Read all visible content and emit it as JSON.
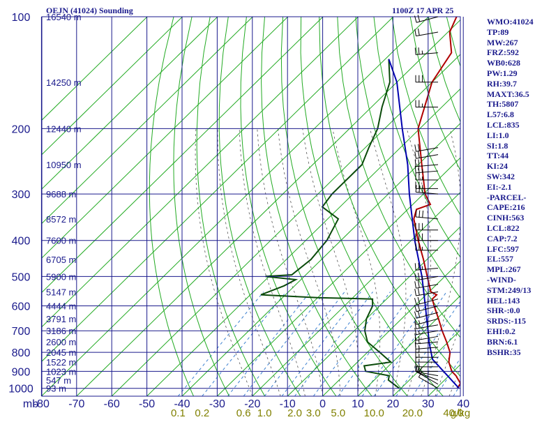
{
  "header": {
    "station_title": "OEJN (41024) Sounding",
    "time_stamp": "1100Z 17 APR 25"
  },
  "side_panel": [
    "WMO:41024",
    "TP:89",
    "MW:267",
    "FRZ:592",
    "WB0:628",
    "PW:1.29",
    "RH:39.7",
    "MAXT:36.5",
    "TH:5807",
    "L57:6.8",
    "LCL:835",
    "LI:1.0",
    "SI:1.8",
    "TT:44",
    "KI:24",
    "SW:342",
    "EI:-2.1",
    "-PARCEL-",
    "CAPE:216",
    "CINH:563",
    "LCL:822",
    "CAP:7.2",
    "LFC:597",
    "EL:557",
    "MPL:267",
    "-WIND-",
    "STM:249/13",
    "HEL:143",
    "SHR-:0.0",
    "SRDS:-115",
    "EHI:0.2",
    "BRN:6.1",
    "BSHR:35"
  ],
  "colors": {
    "background": "#ffffff",
    "grid": "#1a1a8c",
    "isotherm_dry_adiabat": "#22aa22",
    "moist_adiabat": "#555555",
    "mixing_ratio": "#3a7fd0",
    "temperature": "#b00000",
    "dewpoint": "#0a4a0a",
    "parcel": "#0000b0",
    "wind_barb": "#000000",
    "axis_text": "#1a1a8c",
    "mixing_text": "#808000",
    "height_text": "#1a1a8c"
  },
  "chart_data": {
    "type": "line",
    "chart_kind": "skew-T log-p sounding",
    "x_axis_unit_label": "mb",
    "x_tick_labels": [
      "-80",
      "-70",
      "-60",
      "-50",
      "-40",
      "-30",
      "-20",
      "-10",
      "0",
      "10",
      "20",
      "30",
      "40"
    ],
    "x_ticks": [
      -80,
      -70,
      -60,
      -50,
      -40,
      -30,
      -20,
      -10,
      0,
      10,
      20,
      30,
      40
    ],
    "xlim": [
      -80,
      40
    ],
    "y_scale": "log",
    "y_ticks": [
      100,
      200,
      300,
      400,
      500,
      600,
      700,
      800,
      900,
      1000
    ],
    "y_tick_labels": [
      "100",
      "200",
      "300",
      "400",
      "500",
      "600",
      "700",
      "800",
      "900",
      "1000"
    ],
    "ylim": [
      1050,
      100
    ],
    "mixing_ratio_labels": [
      "0.1",
      "0.2",
      "0.6",
      "1.0",
      "2.0",
      "3.0",
      "5.0",
      "10.0",
      "20.0",
      "40.0"
    ],
    "mixing_ratio_unit": "g/kg",
    "mixing_ratio_values": [
      0.1,
      0.2,
      0.6,
      1.0,
      2.0,
      3.0,
      5.0,
      10.0,
      20.0,
      40.0
    ],
    "height_labels": [
      {
        "p": 100,
        "label": "16540 m"
      },
      {
        "p": 150,
        "label": "14250 m"
      },
      {
        "p": 200,
        "label": "12440 m"
      },
      {
        "p": 250,
        "label": "10950 m"
      },
      {
        "p": 300,
        "label": "9688 m"
      },
      {
        "p": 350,
        "label": "8572 m"
      },
      {
        "p": 400,
        "label": "7600 m"
      },
      {
        "p": 450,
        "label": "6705 m"
      },
      {
        "p": 500,
        "label": "5900 m"
      },
      {
        "p": 550,
        "label": "5147 m"
      },
      {
        "p": 600,
        "label": "4444 m"
      },
      {
        "p": 650,
        "label": "3791 m"
      },
      {
        "p": 700,
        "label": "3186 m"
      },
      {
        "p": 750,
        "label": "2600 m"
      },
      {
        "p": 800,
        "label": "2045 m"
      },
      {
        "p": 850,
        "label": "1522 m"
      },
      {
        "p": 900,
        "label": "1023 m"
      },
      {
        "p": 950,
        "label": "547 m"
      },
      {
        "p": 1000,
        "label": "93 m"
      }
    ],
    "series": [
      {
        "role": "temperature",
        "points": [
          {
            "p": 1000,
            "t": 36.0
          },
          {
            "p": 970,
            "t": 35.5
          },
          {
            "p": 925,
            "t": 32.0
          },
          {
            "p": 900,
            "t": 29.5
          },
          {
            "p": 850,
            "t": 26.0
          },
          {
            "p": 800,
            "t": 23.5
          },
          {
            "p": 750,
            "t": 19.5
          },
          {
            "p": 700,
            "t": 15.0
          },
          {
            "p": 650,
            "t": 10.5
          },
          {
            "p": 600,
            "t": 5.5
          },
          {
            "p": 575,
            "t": 3.0
          },
          {
            "p": 560,
            "t": 3.0
          },
          {
            "p": 550,
            "t": 0.5
          },
          {
            "p": 500,
            "t": -5.0
          },
          {
            "p": 450,
            "t": -11.0
          },
          {
            "p": 400,
            "t": -18.0
          },
          {
            "p": 350,
            "t": -25.5
          },
          {
            "p": 330,
            "t": -27.5
          },
          {
            "p": 320,
            "t": -25.0
          },
          {
            "p": 300,
            "t": -29.5
          },
          {
            "p": 250,
            "t": -39.0
          },
          {
            "p": 200,
            "t": -50.5
          },
          {
            "p": 150,
            "t": -60.0
          },
          {
            "p": 125,
            "t": -63.0
          },
          {
            "p": 110,
            "t": -69.5
          },
          {
            "p": 100,
            "t": -72.0
          }
        ]
      },
      {
        "role": "dewpoint",
        "points": [
          {
            "p": 1000,
            "t": 19.5
          },
          {
            "p": 950,
            "t": 14.0
          },
          {
            "p": 925,
            "t": 13.0
          },
          {
            "p": 900,
            "t": 5.0
          },
          {
            "p": 870,
            "t": 3.0
          },
          {
            "p": 850,
            "t": 9.5
          },
          {
            "p": 800,
            "t": 3.5
          },
          {
            "p": 750,
            "t": -3.0
          },
          {
            "p": 700,
            "t": -7.0
          },
          {
            "p": 650,
            "t": -10.0
          },
          {
            "p": 600,
            "t": -12.0
          },
          {
            "p": 575,
            "t": -14.0
          },
          {
            "p": 570,
            "t": -30.0
          },
          {
            "p": 560,
            "t": -47.0
          },
          {
            "p": 530,
            "t": -43.0
          },
          {
            "p": 510,
            "t": -41.5
          },
          {
            "p": 500,
            "t": -51.0
          },
          {
            "p": 495,
            "t": -44.0
          },
          {
            "p": 450,
            "t": -43.0
          },
          {
            "p": 400,
            "t": -44.0
          },
          {
            "p": 350,
            "t": -47.0
          },
          {
            "p": 325,
            "t": -55.0
          },
          {
            "p": 300,
            "t": -56.0
          },
          {
            "p": 270,
            "t": -56.0
          },
          {
            "p": 250,
            "t": -56.0
          },
          {
            "p": 225,
            "t": -59.0
          },
          {
            "p": 200,
            "t": -62.0
          },
          {
            "p": 175,
            "t": -67.0
          },
          {
            "p": 150,
            "t": -72.0
          },
          {
            "p": 130,
            "t": -79.0
          }
        ]
      },
      {
        "role": "parcel",
        "points": [
          {
            "p": 1000,
            "t": 36.5
          },
          {
            "p": 835,
            "t": 20.5
          },
          {
            "p": 750,
            "t": 14.5
          },
          {
            "p": 700,
            "t": 11.0
          },
          {
            "p": 600,
            "t": 3.0
          },
          {
            "p": 500,
            "t": -6.5
          },
          {
            "p": 400,
            "t": -19.0
          },
          {
            "p": 300,
            "t": -34.0
          },
          {
            "p": 250,
            "t": -43.0
          },
          {
            "p": 200,
            "t": -55.0
          },
          {
            "p": 150,
            "t": -70.0
          },
          {
            "p": 130,
            "t": -79.0
          }
        ]
      }
    ],
    "wind_barbs": [
      {
        "p": 1000,
        "dir": 300,
        "spd": 10
      },
      {
        "p": 975,
        "dir": 300,
        "spd": 10
      },
      {
        "p": 950,
        "dir": 290,
        "spd": 10
      },
      {
        "p": 925,
        "dir": 280,
        "spd": 10
      },
      {
        "p": 900,
        "dir": 270,
        "spd": 15
      },
      {
        "p": 875,
        "dir": 270,
        "spd": 15
      },
      {
        "p": 850,
        "dir": 270,
        "spd": 15
      },
      {
        "p": 825,
        "dir": 270,
        "spd": 15
      },
      {
        "p": 800,
        "dir": 270,
        "spd": 15
      },
      {
        "p": 775,
        "dir": 265,
        "spd": 15
      },
      {
        "p": 750,
        "dir": 265,
        "spd": 15
      },
      {
        "p": 725,
        "dir": 260,
        "spd": 15
      },
      {
        "p": 700,
        "dir": 260,
        "spd": 15
      },
      {
        "p": 675,
        "dir": 260,
        "spd": 15
      },
      {
        "p": 650,
        "dir": 255,
        "spd": 15
      },
      {
        "p": 625,
        "dir": 255,
        "spd": 20
      },
      {
        "p": 600,
        "dir": 255,
        "spd": 20
      },
      {
        "p": 575,
        "dir": 255,
        "spd": 20
      },
      {
        "p": 550,
        "dir": 260,
        "spd": 20
      },
      {
        "p": 525,
        "dir": 260,
        "spd": 20
      },
      {
        "p": 500,
        "dir": 260,
        "spd": 25
      },
      {
        "p": 475,
        "dir": 265,
        "spd": 25
      },
      {
        "p": 425,
        "dir": 270,
        "spd": 25
      },
      {
        "p": 400,
        "dir": 270,
        "spd": 30
      },
      {
        "p": 375,
        "dir": 270,
        "spd": 30
      },
      {
        "p": 350,
        "dir": 275,
        "spd": 30
      },
      {
        "p": 300,
        "dir": 275,
        "spd": 25
      },
      {
        "p": 290,
        "dir": 270,
        "spd": 25
      },
      {
        "p": 275,
        "dir": 270,
        "spd": 25
      },
      {
        "p": 260,
        "dir": 265,
        "spd": 25
      },
      {
        "p": 250,
        "dir": 265,
        "spd": 20
      },
      {
        "p": 235,
        "dir": 260,
        "spd": 20
      },
      {
        "p": 225,
        "dir": 260,
        "spd": 20
      },
      {
        "p": 175,
        "dir": 270,
        "spd": 25
      },
      {
        "p": 150,
        "dir": 270,
        "spd": 30
      },
      {
        "p": 125,
        "dir": 265,
        "spd": 25
      },
      {
        "p": 110,
        "dir": 260,
        "spd": 20
      },
      {
        "p": 100,
        "dir": 255,
        "spd": 20
      }
    ]
  }
}
